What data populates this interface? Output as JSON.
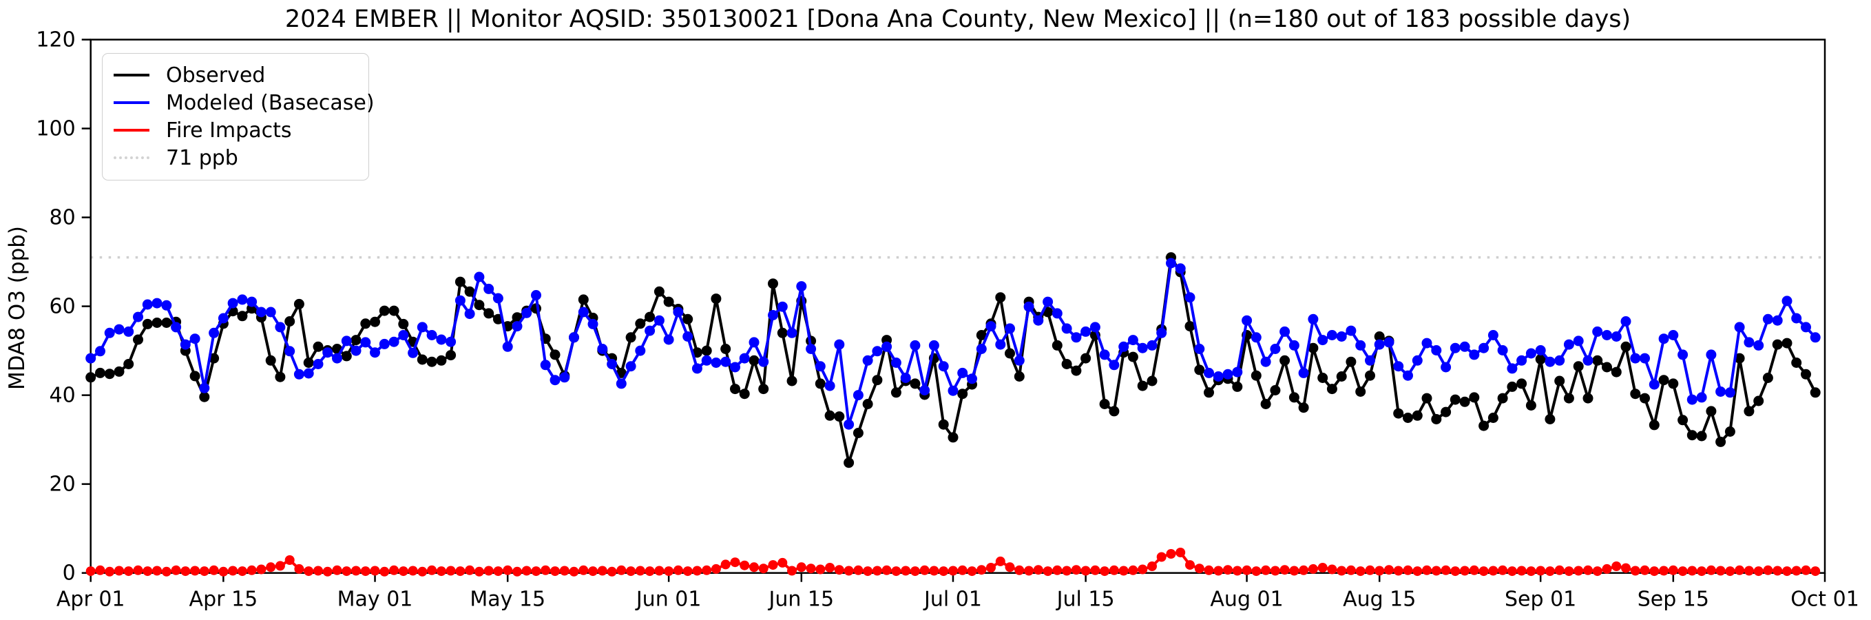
{
  "title": "2024 EMBER || Monitor AQSID: 350130021 [Dona Ana County, New Mexico] || (n=180 out of 183 possible days)",
  "legend": {
    "items": [
      {
        "label": "Observed",
        "color": "#000000",
        "style": "solid"
      },
      {
        "label": "Modeled (Basecase)",
        "color": "#0000ff",
        "style": "solid"
      },
      {
        "label": "Fire Impacts",
        "color": "#ff0000",
        "style": "solid"
      },
      {
        "label": "71 ppb",
        "color": "#d3d3d3",
        "style": "dotted"
      }
    ]
  },
  "colors": {
    "observed": "#000000",
    "modeled": "#0000ff",
    "fire": "#ff0000",
    "threshold": "#cfcfcf",
    "spine": "#000000"
  },
  "chart_data": {
    "type": "line",
    "title": "2024 EMBER || Monitor AQSID: 350130021 [Dona Ana County, New Mexico] || (n=180 out of 183 possible days)",
    "xlabel": "",
    "ylabel": "MDA8 O3 (ppb)",
    "ylim": [
      0,
      120
    ],
    "y_ticks": [
      0,
      20,
      40,
      60,
      80,
      100,
      120
    ],
    "x_range_days": [
      0,
      183
    ],
    "x_ticks": [
      {
        "label": "Apr 01",
        "day": 0
      },
      {
        "label": "Apr 15",
        "day": 14
      },
      {
        "label": "May 01",
        "day": 30
      },
      {
        "label": "May 15",
        "day": 44
      },
      {
        "label": "Jun 01",
        "day": 61
      },
      {
        "label": "Jun 15",
        "day": 75
      },
      {
        "label": "Jul 01",
        "day": 91
      },
      {
        "label": "Jul 15",
        "day": 105
      },
      {
        "label": "Aug 01",
        "day": 122
      },
      {
        "label": "Aug 15",
        "day": 136
      },
      {
        "label": "Sep 01",
        "day": 153
      },
      {
        "label": "Sep 15",
        "day": 167
      },
      {
        "label": "Oct 01",
        "day": 183
      }
    ],
    "reference_line": {
      "label": "71 ppb",
      "value": 71,
      "color": "#cfcfcf",
      "linestyle": "dotted"
    },
    "grid": false,
    "legend_position": "upper-left",
    "series": [
      {
        "name": "Observed",
        "color": "#000000",
        "marker": "circle",
        "values": [
          44,
          45,
          44.8,
          45.3,
          47,
          52.5,
          56,
          56.3,
          56.3,
          56.5,
          50,
          44.3,
          39.6,
          48.3,
          56.1,
          58.9,
          57.8,
          59.5,
          57.5,
          47.8,
          44.1,
          56.6,
          60.5,
          47.3,
          50.9,
          50.1,
          50.4,
          48.8,
          52.4,
          56.1,
          56.5,
          59,
          59,
          56,
          52,
          48,
          47.5,
          47.8,
          49,
          65.5,
          63.3,
          60.3,
          58.4,
          57.1,
          55.5,
          57.5,
          59,
          59.5,
          52.7,
          49.1,
          44.4,
          53,
          61.5,
          57.4,
          50,
          48.3,
          45,
          53,
          56.1,
          57.6,
          63.3,
          61,
          59.4,
          57.1,
          49.6,
          50,
          61.7,
          50.4,
          41.4,
          40.3,
          47.8,
          41.4,
          65.1,
          54,
          43.2,
          61.2,
          52.2,
          42.6,
          35.4,
          35.2,
          24.8,
          31.5,
          38,
          43.4,
          52.4,
          40.6,
          43.2,
          42.6,
          40.1,
          48.3,
          33.4,
          30.5,
          40.3,
          42.4,
          53.5,
          56.1,
          62,
          49.4,
          44.2,
          61,
          57.6,
          58.7,
          51.2,
          47,
          45.5,
          48.3,
          53.5,
          38,
          36.4,
          49.6,
          48.6,
          42.1,
          43.2,
          54.8,
          71,
          67.7,
          55.5,
          45.7,
          40.6,
          43.4,
          43.7,
          41.9,
          53.5,
          44.4,
          38,
          41.1,
          47.8,
          39.5,
          37.2,
          50.6,
          43.9,
          41.4,
          44.2,
          47.5,
          40.8,
          44.4,
          53.2,
          52.2,
          35.9,
          34.9,
          35.4,
          39.3,
          34.6,
          36.2,
          39,
          38.5,
          39.5,
          33.1,
          34.9,
          39.3,
          41.9,
          42.6,
          37.7,
          48.1,
          34.6,
          43.2,
          39.3,
          46.5,
          39.3,
          47.8,
          46.3,
          45.2,
          50.9,
          40.3,
          39.3,
          33.3,
          43.4,
          42.6,
          34.4,
          31,
          30.8,
          36.4,
          29.5,
          31.8,
          48.3,
          36.4,
          38.7,
          43.9,
          51.4,
          51.7,
          47.3,
          44.7,
          40.6
        ]
      },
      {
        "name": "Modeled (Basecase)",
        "color": "#0000ff",
        "marker": "circle",
        "values": [
          48.3,
          49.9,
          54,
          54.8,
          54.3,
          57.6,
          60.4,
          60.7,
          60.2,
          55.3,
          51.4,
          52.7,
          41.6,
          54,
          57.3,
          60.7,
          61.5,
          61,
          58.7,
          58.7,
          55.3,
          49.9,
          44.7,
          44.9,
          47,
          49.6,
          48.3,
          52.2,
          50,
          51.9,
          49.6,
          51.5,
          52,
          53.5,
          49.5,
          55.3,
          53.5,
          52.5,
          52,
          61.3,
          58.3,
          66.6,
          63.9,
          61.8,
          50.9,
          55.5,
          58.5,
          62.5,
          46.8,
          43.4,
          44,
          53,
          58.7,
          56,
          50.4,
          47,
          42.6,
          46.5,
          50,
          54.5,
          56.8,
          52.5,
          58.7,
          53.2,
          46,
          47.8,
          47.3,
          47.5,
          46.3,
          48.3,
          51.9,
          47.5,
          58,
          59.9,
          54,
          64.5,
          50.4,
          46.5,
          42.1,
          51.4,
          33.4,
          40,
          47.8,
          49.9,
          50.9,
          47.3,
          43.9,
          51.2,
          41.1,
          51.2,
          46.5,
          41,
          45,
          43.7,
          50.4,
          55.5,
          51.4,
          55,
          47.8,
          59.9,
          56.8,
          61,
          58.4,
          55,
          53,
          54.3,
          55.3,
          49.1,
          46.8,
          50.9,
          52.4,
          50.6,
          51.2,
          54,
          69.7,
          68.5,
          62,
          50.4,
          45,
          44.2,
          44.7,
          45.2,
          56.8,
          53,
          47.5,
          50.4,
          54.3,
          51.2,
          45,
          57.1,
          52.4,
          53.5,
          53.2,
          54.5,
          51.2,
          47.8,
          51.4,
          51.9,
          46.5,
          44.4,
          47.8,
          51.7,
          50.1,
          46.3,
          50.6,
          50.9,
          49.1,
          50.6,
          53.5,
          50.1,
          46,
          47.8,
          49.4,
          50.1,
          47.5,
          47.8,
          51.4,
          52.2,
          47.8,
          54.3,
          53.5,
          53.2,
          56.6,
          48.3,
          48.3,
          42.4,
          52.7,
          53.5,
          49.1,
          39,
          39.5,
          49.1,
          40.8,
          40.6,
          55.3,
          51.9,
          51.2,
          57.1,
          56.8,
          61.2,
          57.3,
          55.3,
          53
        ]
      },
      {
        "name": "Fire Impacts",
        "color": "#ff0000",
        "marker": "circle",
        "values": [
          0.4,
          0.6,
          0.3,
          0.5,
          0.4,
          0.6,
          0.4,
          0.5,
          0.3,
          0.6,
          0.4,
          0.5,
          0.4,
          0.6,
          0.3,
          0.5,
          0.4,
          0.6,
          0.8,
          1.3,
          1.6,
          2.9,
          0.9,
          0.4,
          0.5,
          0.3,
          0.6,
          0.4,
          0.5,
          0.4,
          0.5,
          0.3,
          0.6,
          0.4,
          0.5,
          0.3,
          0.6,
          0.4,
          0.5,
          0.4,
          0.6,
          0.3,
          0.5,
          0.4,
          0.6,
          0.3,
          0.5,
          0.4,
          0.6,
          0.4,
          0.5,
          0.3,
          0.6,
          0.4,
          0.5,
          0.3,
          0.6,
          0.4,
          0.5,
          0.4,
          0.5,
          0.4,
          0.6,
          0.4,
          0.5,
          0.6,
          0.9,
          1.9,
          2.4,
          1.7,
          1.3,
          1.0,
          1.8,
          2.3,
          0.5,
          1.3,
          1.0,
          0.8,
          1.2,
          0.7,
          0.5,
          0.6,
          0.4,
          0.5,
          0.6,
          0.4,
          0.5,
          0.4,
          0.6,
          0.5,
          0.4,
          0.5,
          0.6,
          0.4,
          0.7,
          1.2,
          2.6,
          1.3,
          0.6,
          0.5,
          0.7,
          0.4,
          0.6,
          0.5,
          0.7,
          0.5,
          0.6,
          0.4,
          0.6,
          0.5,
          0.6,
          0.8,
          1.5,
          3.6,
          4.3,
          4.6,
          1.8,
          1.0,
          0.6,
          0.5,
          0.7,
          0.5,
          0.6,
          0.4,
          0.6,
          0.5,
          0.7,
          0.5,
          0.6,
          0.9,
          1.2,
          0.8,
          0.5,
          0.6,
          0.4,
          0.6,
          0.5,
          0.7,
          0.5,
          0.6,
          0.4,
          0.6,
          0.5,
          0.6,
          0.4,
          0.5,
          0.6,
          0.4,
          0.5,
          0.6,
          0.4,
          0.5,
          0.4,
          0.5,
          0.4,
          0.6,
          0.4,
          0.5,
          0.6,
          0.4,
          0.9,
          1.5,
          1.1,
          0.5,
          0.6,
          0.4,
          0.5,
          0.6,
          0.4,
          0.5,
          0.4,
          0.6,
          0.5,
          0.4,
          0.6,
          0.5,
          0.4,
          0.6,
          0.5,
          0.4,
          0.5,
          0.6,
          0.4
        ]
      }
    ]
  }
}
